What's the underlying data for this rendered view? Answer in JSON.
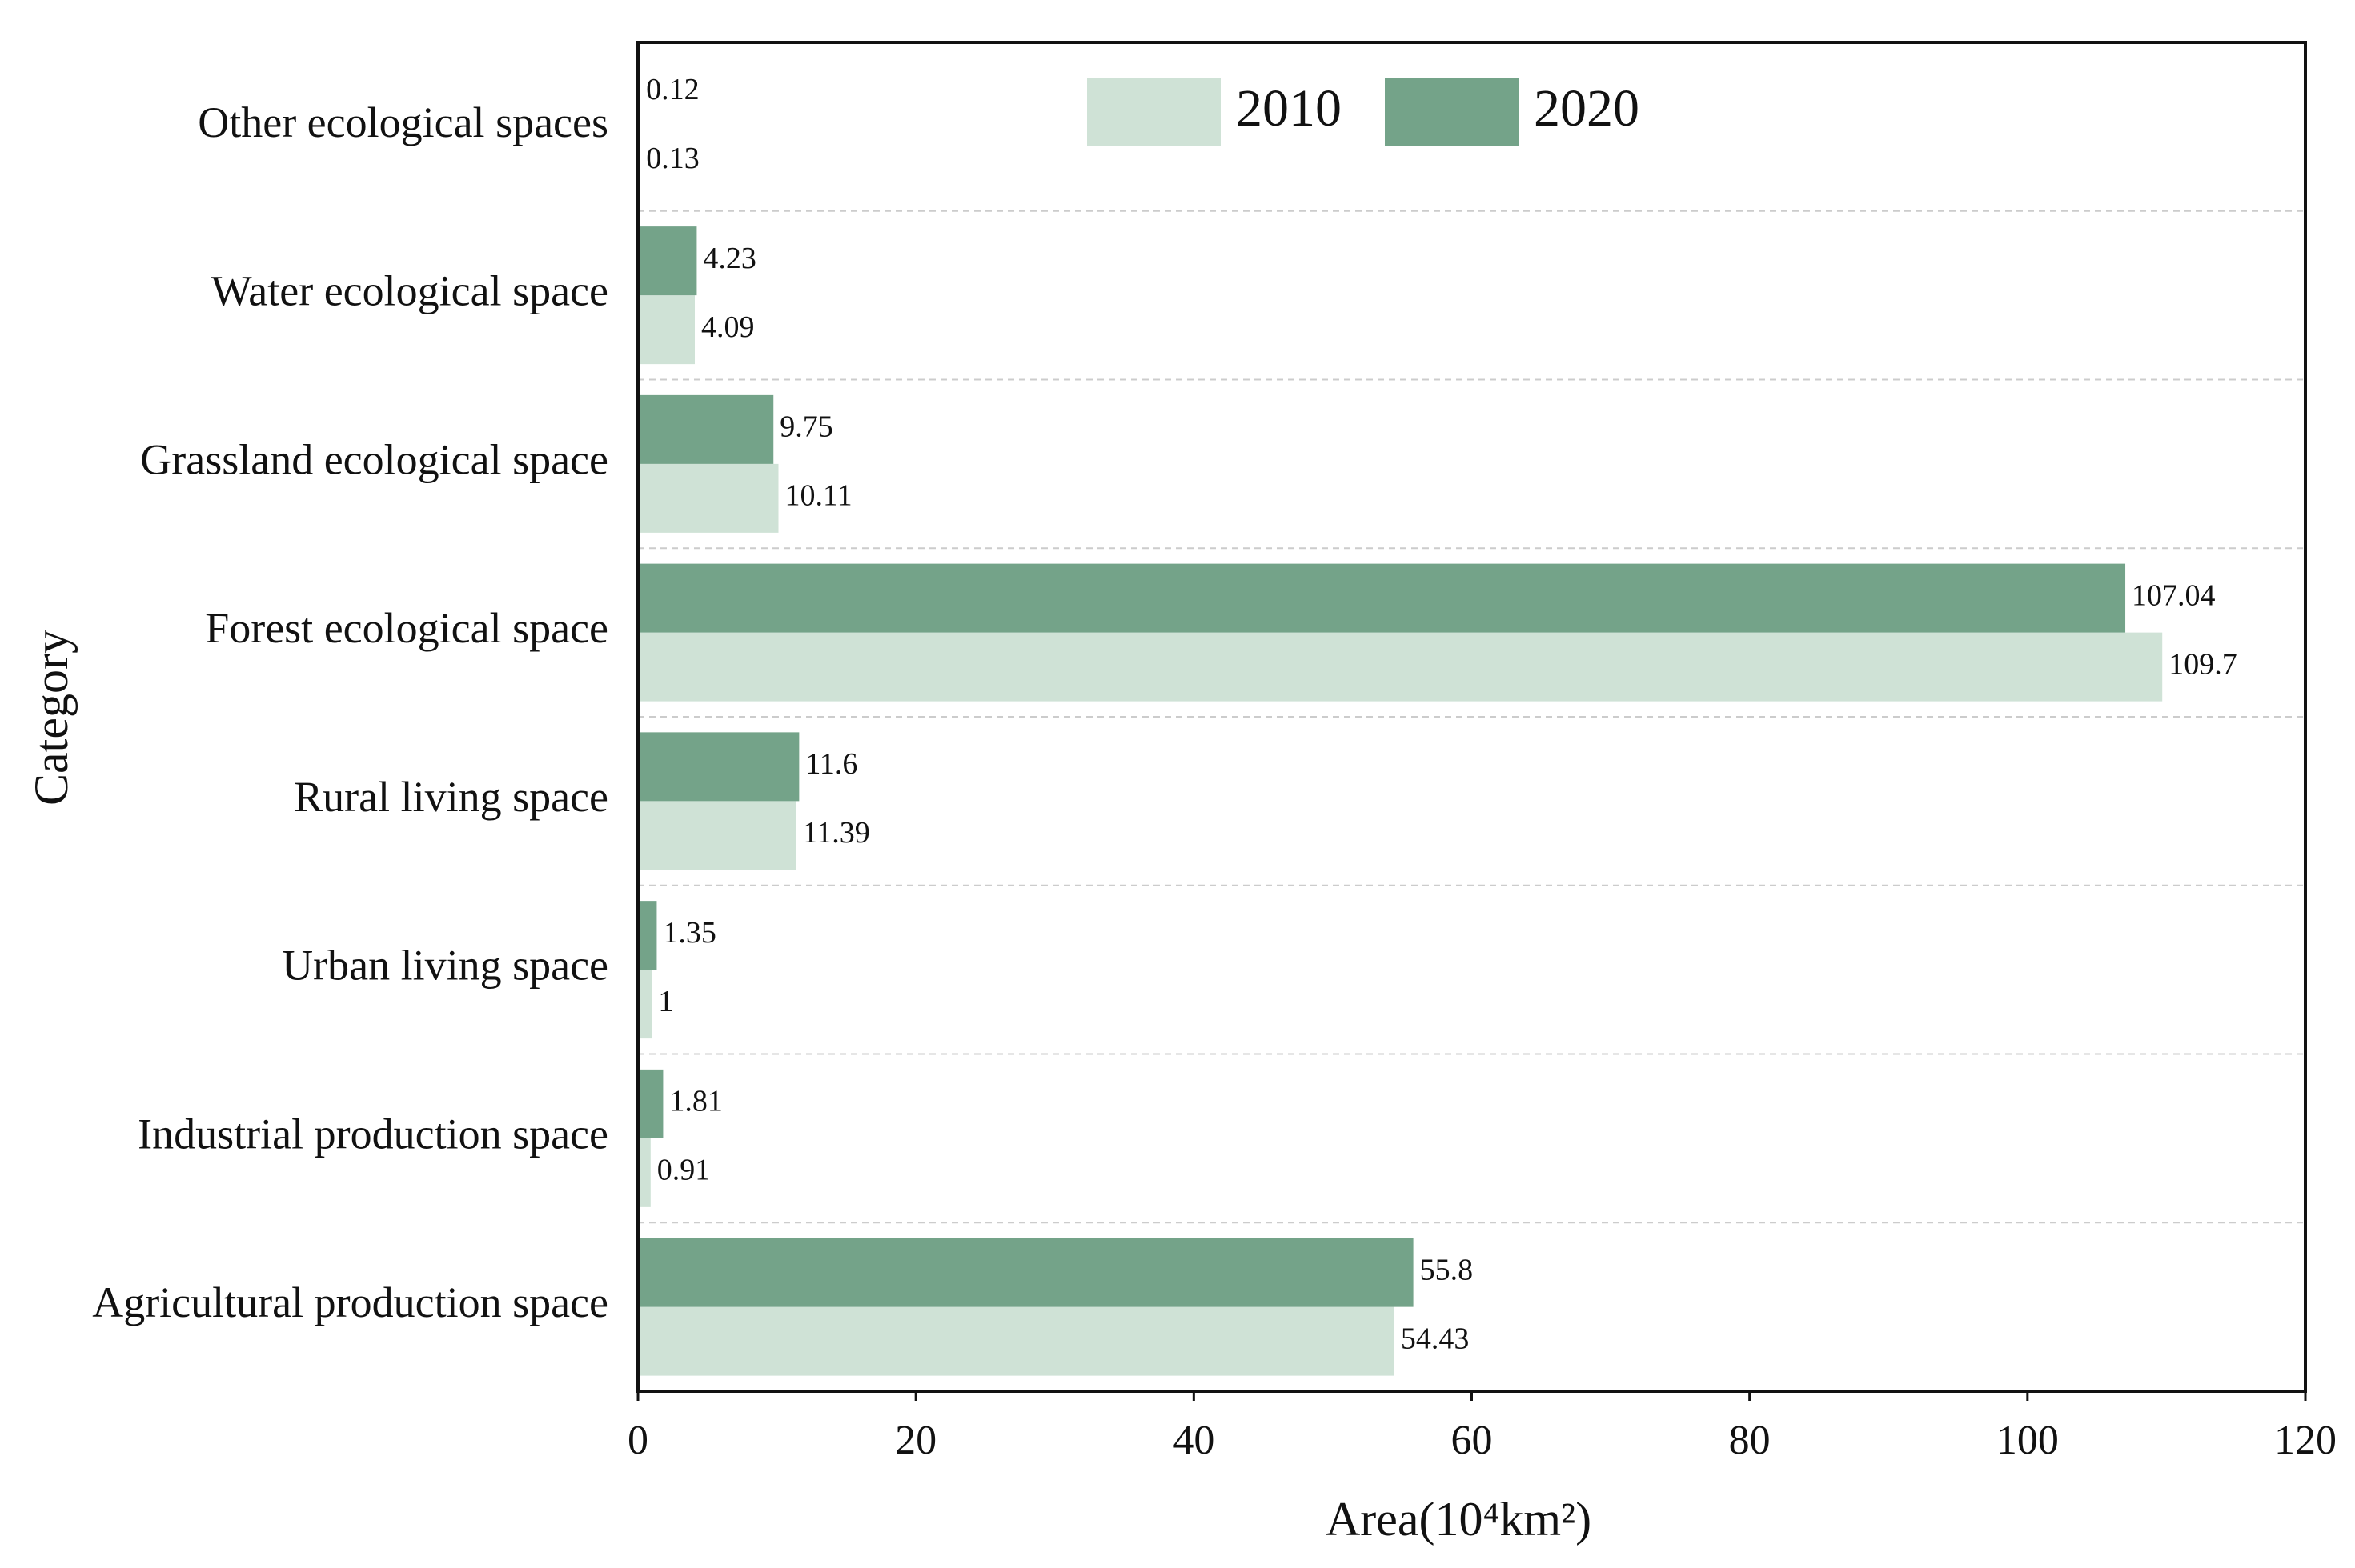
{
  "chart_data": {
    "type": "hbar",
    "x_label": "Area(10⁴km²)",
    "y_label": "Category",
    "categories": [
      "Other ecological spaces",
      "Water ecological space",
      "Grassland ecological space",
      "Forest ecological space",
      "Rural living space",
      "Urban living space",
      "Industrial production space",
      "Agricultural production space"
    ],
    "series": [
      {
        "name": "2010",
        "color": "#cfe2d6",
        "values": [
          0.13,
          4.09,
          10.11,
          109.7,
          11.39,
          1,
          0.91,
          54.43
        ]
      },
      {
        "name": "2020",
        "color": "#74a389",
        "values": [
          0.12,
          4.23,
          9.75,
          107.04,
          11.6,
          1.35,
          1.81,
          55.8
        ]
      }
    ],
    "xlim": [
      0,
      120
    ],
    "xticks": [
      0,
      20,
      40,
      60,
      80,
      100,
      120
    ],
    "legend": "top"
  }
}
